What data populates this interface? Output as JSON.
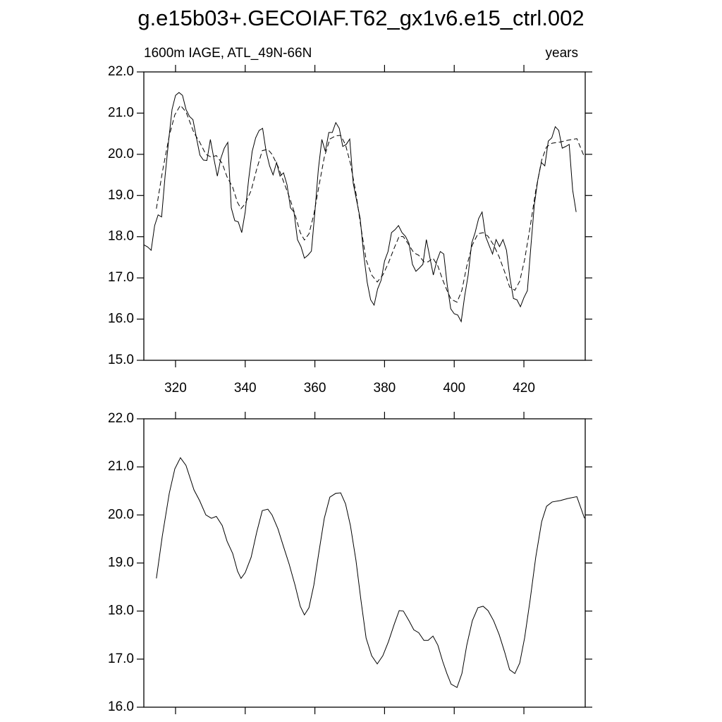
{
  "chart_data": [
    {
      "type": "line",
      "title": "g.e15b03+.GECOIAF.T62_gx1v6.e15_ctrl.002",
      "left_string": "1600m IAGE, ATL_49N-66N",
      "right_string": "years",
      "xlim": [
        310.9,
        437.6
      ],
      "ylim": [
        15,
        22
      ],
      "xticks": [
        320,
        340,
        360,
        380,
        400,
        420
      ],
      "yticks": [
        {
          "value": 15,
          "label": "15.0"
        },
        {
          "value": 16,
          "label": "16.0"
        },
        {
          "value": 17,
          "label": "17.0"
        },
        {
          "value": 18,
          "label": "18.0"
        },
        {
          "value": 19,
          "label": "19.0"
        },
        {
          "value": 20,
          "label": "20.0"
        },
        {
          "value": 21,
          "label": "21.0"
        },
        {
          "value": 22,
          "label": "22.0"
        }
      ],
      "series": [
        {
          "color": "#000000",
          "dashed": false,
          "x": [
            311,
            312,
            313,
            314,
            315,
            316,
            317,
            318,
            319,
            320,
            321,
            322,
            323,
            324,
            325,
            326,
            327,
            328,
            329,
            330,
            331,
            332,
            333,
            334,
            335,
            336,
            337,
            338,
            339,
            340,
            341,
            342,
            343,
            344,
            345,
            346,
            347,
            348,
            349,
            350,
            351,
            352,
            353,
            354,
            355,
            356,
            357,
            358,
            359,
            360,
            361,
            362,
            363,
            364,
            365,
            366,
            367,
            368,
            369,
            370,
            371,
            372,
            373,
            374,
            375,
            376,
            377,
            378,
            379,
            380,
            381,
            382,
            383,
            384,
            385,
            386,
            387,
            388,
            389,
            390,
            391,
            392,
            393,
            394,
            395,
            396,
            397,
            398,
            399,
            400,
            401,
            402,
            403,
            404,
            405,
            406,
            407,
            408,
            409,
            410,
            411,
            412,
            413,
            414,
            415,
            416,
            417,
            418,
            419,
            420,
            421,
            422,
            423,
            424,
            425,
            426,
            427,
            428,
            429,
            430,
            431,
            432,
            433,
            434,
            435
          ],
          "values": [
            17.8,
            17.75,
            17.67,
            18.27,
            18.53,
            18.48,
            19.47,
            20.32,
            21.09,
            21.43,
            21.5,
            21.43,
            21.09,
            20.92,
            20.84,
            20.4,
            19.98,
            19.86,
            19.85,
            20.36,
            19.9,
            19.47,
            19.9,
            20.15,
            20.29,
            18.7,
            18.39,
            18.36,
            18.1,
            18.6,
            19.4,
            20.07,
            20.4,
            20.58,
            20.63,
            20.07,
            19.72,
            19.5,
            19.8,
            19.47,
            19.55,
            19.26,
            18.7,
            18.6,
            17.93,
            17.76,
            17.48,
            17.55,
            17.65,
            18.6,
            19.64,
            20.36,
            20.07,
            20.53,
            20.53,
            20.77,
            20.63,
            20.19,
            20.24,
            20.37,
            19.3,
            18.87,
            18.44,
            17.58,
            16.9,
            16.47,
            16.34,
            16.73,
            16.94,
            17.41,
            17.64,
            18.1,
            18.17,
            18.27,
            18.1,
            18.01,
            17.84,
            17.33,
            17.16,
            17.24,
            17.33,
            17.93,
            17.5,
            17.07,
            17.41,
            17.64,
            17.58,
            16.82,
            16.25,
            16.13,
            16.1,
            15.94,
            16.56,
            17.07,
            17.84,
            18.1,
            18.44,
            18.6,
            18.01,
            17.79,
            17.58,
            17.93,
            17.76,
            17.93,
            17.67,
            16.99,
            16.5,
            16.47,
            16.3,
            16.52,
            16.69,
            17.76,
            18.78,
            19.38,
            19.8,
            19.72,
            20.32,
            20.4,
            20.67,
            20.58,
            20.15,
            20.19,
            20.24,
            19.13,
            18.6
          ]
        },
        {
          "color": "#000000",
          "dashed": true,
          "x": [
            314.5,
            316.2,
            318.2,
            319.8,
            321.4,
            323.0,
            325.3,
            326.9,
            328.7,
            330.3,
            331.7,
            333.4,
            334.8,
            336.4,
            337.8,
            338.8,
            340.0,
            341.7,
            343.3,
            344.9,
            346.5,
            347.7,
            349.4,
            351.0,
            352.6,
            354.3,
            355.8,
            357.0,
            358.3,
            359.7,
            361.1,
            362.7,
            364.3,
            366.0,
            367.4,
            368.8,
            370.2,
            371.8,
            373.2,
            374.7,
            376.3,
            377.9,
            379.5,
            381.1,
            382.8,
            384.2,
            385.4,
            387.0,
            388.4,
            389.8,
            391.3,
            392.5,
            393.9,
            395.3,
            396.7,
            397.9,
            399.1,
            400.8,
            402.2,
            403.6,
            405.2,
            406.8,
            408.3,
            409.7,
            411.3,
            412.9,
            414.5,
            415.9,
            417.4,
            418.8,
            420.2,
            421.8,
            423.4,
            425.1,
            426.5,
            428.1,
            430.5,
            432.5,
            435.2,
            437.4
          ],
          "values": [
            18.68,
            19.56,
            20.45,
            20.96,
            21.19,
            21.03,
            20.52,
            20.3,
            20.0,
            19.93,
            19.97,
            19.78,
            19.45,
            19.2,
            18.83,
            18.68,
            18.8,
            19.12,
            19.64,
            20.09,
            20.12,
            20.0,
            19.71,
            19.34,
            18.98,
            18.54,
            18.1,
            17.92,
            18.07,
            18.54,
            19.2,
            19.93,
            20.37,
            20.45,
            20.46,
            20.23,
            19.78,
            19.05,
            18.24,
            17.44,
            17.07,
            16.9,
            17.07,
            17.36,
            17.73,
            18.01,
            18.0,
            17.8,
            17.61,
            17.55,
            17.39,
            17.39,
            17.48,
            17.29,
            16.95,
            16.7,
            16.48,
            16.41,
            16.7,
            17.29,
            17.8,
            18.07,
            18.1,
            18.01,
            17.8,
            17.51,
            17.14,
            16.78,
            16.7,
            16.92,
            17.44,
            18.24,
            19.12,
            19.86,
            20.18,
            20.27,
            20.3,
            20.34,
            20.38,
            19.93
          ]
        }
      ]
    },
    {
      "type": "line",
      "xlim": [
        310.9,
        437.6
      ],
      "ylim": [
        16,
        22
      ],
      "xticks": [
        320,
        340,
        360,
        380,
        400,
        420
      ],
      "xtick_labels": false,
      "yticks": [
        {
          "value": 16,
          "label": "16.0"
        },
        {
          "value": 17,
          "label": "17.0"
        },
        {
          "value": 18,
          "label": "18.0"
        },
        {
          "value": 19,
          "label": "19.0"
        },
        {
          "value": 20,
          "label": "20.0"
        },
        {
          "value": 21,
          "label": "21.0"
        },
        {
          "value": 22,
          "label": "22.0"
        }
      ],
      "series": [
        {
          "color": "#000000",
          "dashed": false,
          "x": [
            314.5,
            316.2,
            318.2,
            319.8,
            321.4,
            323.0,
            325.3,
            326.9,
            328.7,
            330.3,
            331.7,
            333.4,
            334.8,
            336.4,
            337.8,
            338.8,
            340.0,
            341.7,
            343.3,
            344.9,
            346.5,
            347.7,
            349.4,
            351.0,
            352.6,
            354.3,
            355.8,
            357.0,
            358.3,
            359.7,
            361.1,
            362.7,
            364.3,
            366.0,
            367.4,
            368.8,
            370.2,
            371.8,
            373.2,
            374.7,
            376.3,
            377.9,
            379.5,
            381.1,
            382.8,
            384.2,
            385.4,
            387.0,
            388.4,
            389.8,
            391.3,
            392.5,
            393.9,
            395.3,
            396.7,
            397.9,
            399.1,
            400.8,
            402.2,
            403.6,
            405.2,
            406.8,
            408.3,
            409.7,
            411.3,
            412.9,
            414.5,
            415.9,
            417.4,
            418.8,
            420.2,
            421.8,
            423.4,
            425.1,
            426.5,
            428.1,
            430.5,
            432.5,
            435.2,
            437.4
          ],
          "values": [
            18.68,
            19.56,
            20.45,
            20.96,
            21.19,
            21.03,
            20.52,
            20.3,
            20.0,
            19.93,
            19.97,
            19.78,
            19.45,
            19.2,
            18.83,
            18.68,
            18.8,
            19.12,
            19.64,
            20.09,
            20.12,
            20.0,
            19.71,
            19.34,
            18.98,
            18.54,
            18.1,
            17.92,
            18.07,
            18.54,
            19.2,
            19.93,
            20.37,
            20.45,
            20.46,
            20.23,
            19.78,
            19.05,
            18.24,
            17.44,
            17.07,
            16.9,
            17.07,
            17.36,
            17.73,
            18.01,
            18.0,
            17.8,
            17.61,
            17.55,
            17.39,
            17.39,
            17.48,
            17.29,
            16.95,
            16.7,
            16.48,
            16.41,
            16.7,
            17.29,
            17.8,
            18.07,
            18.1,
            18.01,
            17.8,
            17.51,
            17.14,
            16.78,
            16.7,
            16.92,
            17.44,
            18.24,
            19.12,
            19.86,
            20.18,
            20.27,
            20.3,
            20.34,
            20.38,
            19.93
          ]
        }
      ]
    }
  ]
}
